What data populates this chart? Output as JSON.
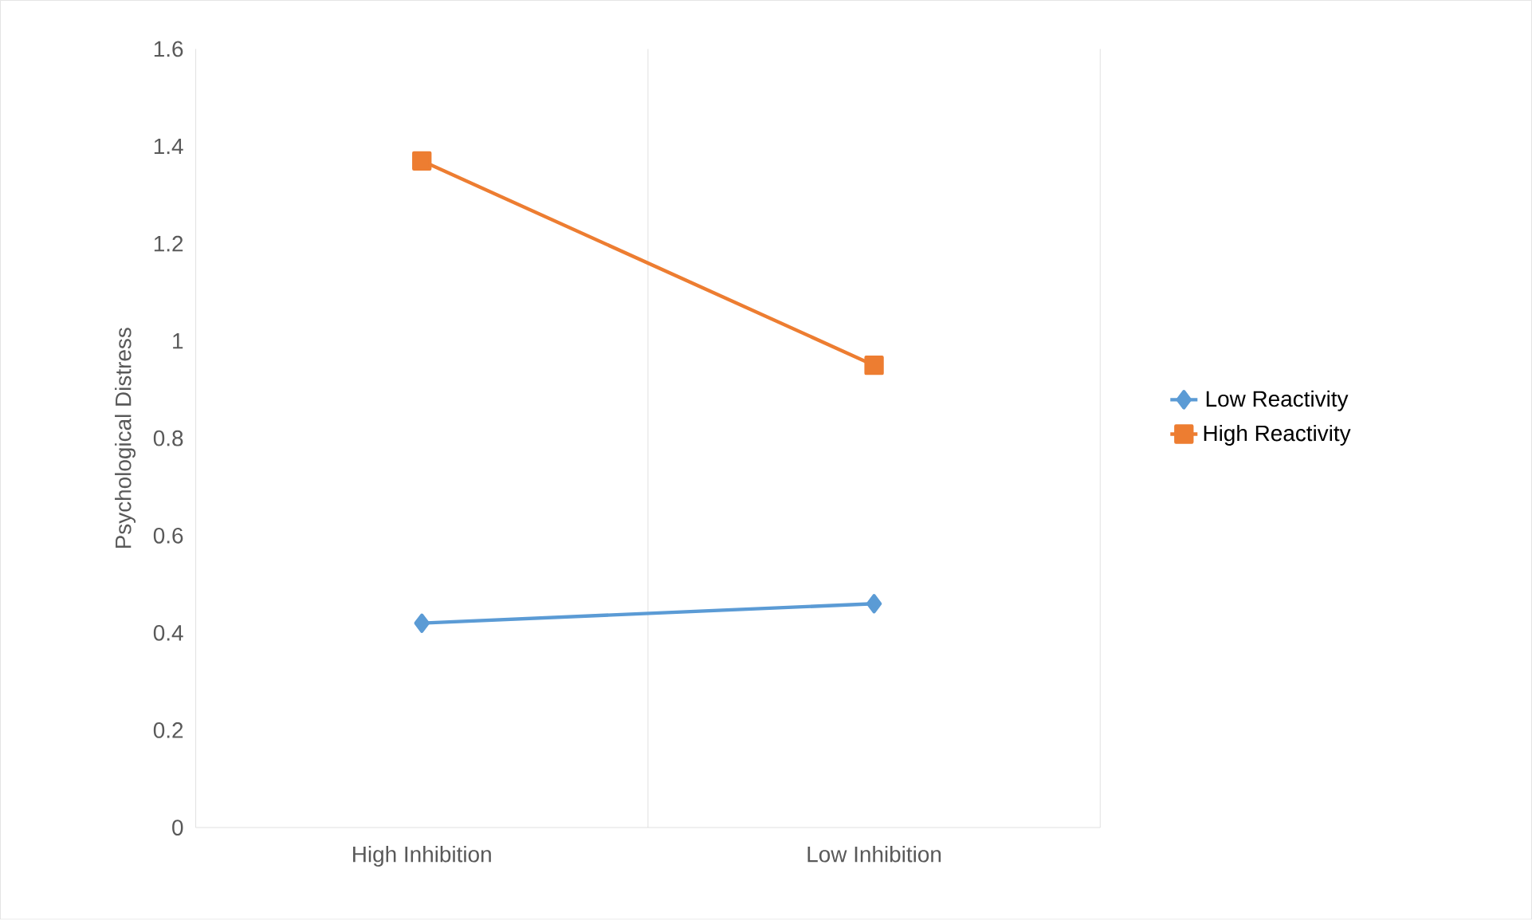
{
  "chart_data": {
    "type": "line",
    "ylabel": "Psychological Distress",
    "categories": [
      "High Inhibition",
      "Low Inhibition"
    ],
    "series": [
      {
        "name": "Low Reactivity",
        "color": "#5b9bd5",
        "marker": "diamond",
        "values": [
          0.42,
          0.46
        ]
      },
      {
        "name": "High Reactivity",
        "color": "#ed7d31",
        "marker": "square",
        "values": [
          1.37,
          0.95
        ]
      }
    ],
    "ylim": [
      0,
      1.6
    ],
    "yticks": [
      0,
      0.2,
      0.4,
      0.6,
      0.8,
      1,
      1.2,
      1.4,
      1.6
    ],
    "grid": "x",
    "legend": "right"
  }
}
